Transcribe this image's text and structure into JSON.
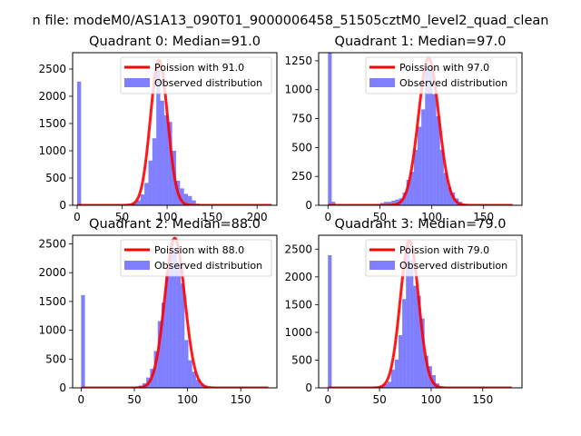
{
  "figure": {
    "suptitle": "n file: modeM0/AS1A13_090T01_9000006458_51505cztM0_level2_quad_clean",
    "colors": {
      "hist": "#0000ff",
      "line": "#ff0000",
      "axis": "#000000"
    }
  },
  "chart_data": [
    {
      "type": "bar+line",
      "title": "Quadrant 0: Median=91.0",
      "median": 91.0,
      "xlim": [
        -5,
        222
      ],
      "ylim": [
        0,
        2800
      ],
      "xticks": [
        0,
        50,
        100,
        150,
        200
      ],
      "yticks": [
        0,
        500,
        1000,
        1500,
        2000,
        2500
      ],
      "bin_width": 4.4,
      "hist_bins": [
        0,
        44,
        48.4,
        52.8,
        57.2,
        61.6,
        66,
        70.4,
        74.8,
        79.2,
        83.6,
        88,
        92.4,
        96.8,
        101.2,
        105.6,
        110,
        114.4,
        118.8,
        123.2,
        127.6,
        132,
        136.4
      ],
      "hist_counts": [
        2270,
        10,
        10,
        20,
        30,
        40,
        90,
        200,
        410,
        820,
        1230,
        2480,
        1920,
        1650,
        1530,
        1000,
        450,
        310,
        210,
        170,
        90,
        30,
        10
      ],
      "legend": {
        "line": "Poission with 91.0",
        "hist": "Observed distribution"
      },
      "poisson_peak": 2660,
      "poisson_sd": 9.54,
      "poisson_xrange": [
        0,
        216
      ]
    },
    {
      "type": "bar+line",
      "title": "Quadrant 1: Median=97.0",
      "median": 97.0,
      "xlim": [
        -9,
        187
      ],
      "ylim": [
        0,
        1320
      ],
      "xticks": [
        0,
        50,
        100,
        150
      ],
      "yticks": [
        0,
        250,
        500,
        750,
        1000,
        1250
      ],
      "bin_width": 3.6,
      "hist_bins": [
        0,
        3.6,
        43.2,
        46.8,
        50.4,
        54,
        57.6,
        61.2,
        64.8,
        68.4,
        72,
        75.6,
        79.2,
        82.8,
        86.4,
        90,
        93.6,
        97.2,
        100.8,
        104.4,
        108,
        111.6,
        115.2,
        118.8,
        122.4,
        126,
        129.6
      ],
      "hist_counts": [
        1320,
        30,
        10,
        10,
        20,
        30,
        30,
        40,
        50,
        60,
        110,
        220,
        290,
        480,
        680,
        830,
        1200,
        1180,
        960,
        770,
        480,
        280,
        160,
        110,
        60,
        30,
        10
      ],
      "legend": {
        "line": "Poission with 97.0",
        "hist": "Observed distribution"
      },
      "poisson_peak": 1270,
      "poisson_sd": 9.85,
      "poisson_xrange": [
        0,
        178
      ]
    },
    {
      "type": "bar+line",
      "title": "Quadrant 2: Median=88.0",
      "median": 88.0,
      "xlim": [
        -8,
        184
      ],
      "ylim": [
        0,
        2650
      ],
      "xticks": [
        0,
        50,
        100,
        150
      ],
      "yticks": [
        0,
        500,
        1000,
        1500,
        2000,
        2500
      ],
      "bin_width": 3.6,
      "hist_bins": [
        0,
        50.4,
        54,
        57.6,
        61.2,
        64.8,
        68.4,
        72,
        75.6,
        79.2,
        82.8,
        86.4,
        90,
        93.6,
        97.2,
        100.8,
        104.4,
        108,
        111.6,
        115.2
      ],
      "hist_counts": [
        1610,
        20,
        40,
        80,
        180,
        330,
        640,
        1160,
        1480,
        1980,
        2320,
        2430,
        2160,
        1810,
        830,
        480,
        280,
        140,
        60,
        20
      ],
      "legend": {
        "line": "Poission with 88.0",
        "hist": "Observed distribution"
      },
      "poisson_peak": 2600,
      "poisson_sd": 9.38,
      "poisson_xrange": [
        0,
        176
      ]
    },
    {
      "type": "bar+line",
      "title": "Quadrant 3: Median=79.0",
      "median": 79.0,
      "xlim": [
        -9,
        188
      ],
      "ylim": [
        0,
        2750
      ],
      "xticks": [
        0,
        50,
        100,
        150
      ],
      "yticks": [
        0,
        500,
        1000,
        1500,
        2000,
        2500
      ],
      "bin_width": 3.6,
      "hist_bins": [
        0,
        43.2,
        46.8,
        50.4,
        54,
        57.6,
        61.2,
        64.8,
        68.4,
        72,
        75.6,
        79.2,
        82.8,
        86.4,
        90,
        93.6,
        97.2,
        100.8,
        104.4,
        108
      ],
      "hist_counts": [
        2390,
        10,
        20,
        30,
        70,
        110,
        330,
        510,
        950,
        1600,
        2560,
        2300,
        1840,
        1660,
        1250,
        580,
        390,
        230,
        80,
        20
      ],
      "legend": {
        "line": "Poission with 79.0",
        "hist": "Observed distribution"
      },
      "poisson_peak": 2650,
      "poisson_sd": 8.89,
      "poisson_xrange": [
        0,
        178
      ]
    }
  ]
}
